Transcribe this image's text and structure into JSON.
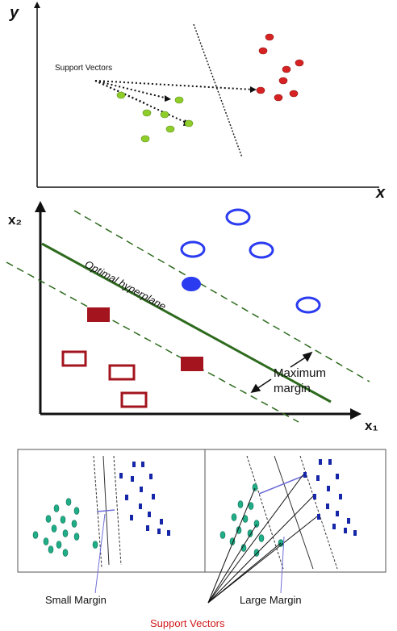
{
  "panel1": {
    "y_axis_label": "y",
    "x_axis_label": "x",
    "support_vectors_label": "Support Vectors",
    "colors": {
      "class_a": "#8fce2a",
      "class_b": "#d62222",
      "line": "#111111"
    }
  },
  "panel2": {
    "y_axis_label": "x₂",
    "x_axis_label": "x₁",
    "hyperplane_label": "Optimal hyperplane",
    "margin_label_line1": "Maximum",
    "margin_label_line2": "margin",
    "colors": {
      "class_circle": "#2b3bf0",
      "class_square": "#a3141e",
      "hyperplane": "#2e6b1e",
      "margin_lines": "#2e6b1e"
    }
  },
  "panel3": {
    "small_margin_label": "Small Margin",
    "large_margin_label": "Large Margin",
    "support_vectors_label": "Support Vectors",
    "colors": {
      "class_dot": "#1fae87",
      "class_square": "#1626a8",
      "support_label": "#d11a1a",
      "margin_arrow": "#6f6fd9"
    }
  }
}
